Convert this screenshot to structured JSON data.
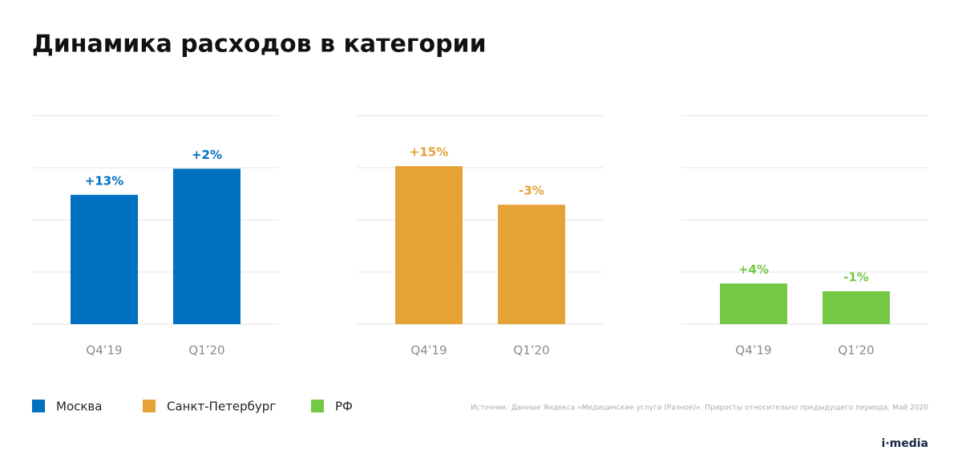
{
  "title": "Динамика расходов в категории",
  "source": "Источник: Данные Яндекса «Медицинские услуги (Разное)». Приросты относительно предыдущего периода. Май 2020",
  "logo": "i·media",
  "chart_data": [
    {
      "type": "bar",
      "series": [
        {
          "name": "Москва",
          "color": "#0070c0",
          "values": [
            2.48,
            2.98
          ]
        }
      ],
      "categories": [
        "Q4’19",
        "Q1’20"
      ],
      "growth_labels": [
        "+13%",
        "+2%"
      ],
      "ylim": [
        0,
        4
      ],
      "yticks": [
        0,
        1,
        2,
        3,
        4
      ],
      "grid": true
    },
    {
      "type": "bar",
      "series": [
        {
          "name": "Санкт-Петербург",
          "color": "#e5a236",
          "values": [
            3.03,
            2.29
          ]
        }
      ],
      "categories": [
        "Q4’19",
        "Q1’20"
      ],
      "growth_labels": [
        "+15%",
        "-3%"
      ],
      "ylim": [
        0,
        4
      ],
      "yticks": [
        0,
        1,
        2,
        3,
        4
      ],
      "grid": true
    },
    {
      "type": "bar",
      "series": [
        {
          "name": "РФ",
          "color": "#74c843",
          "values": [
            0.78,
            0.63
          ]
        }
      ],
      "categories": [
        "Q4’19",
        "Q1’20"
      ],
      "growth_labels": [
        "+4%",
        "-1%"
      ],
      "ylim": [
        0,
        4
      ],
      "yticks": [
        0,
        1,
        2,
        3,
        4
      ],
      "grid": true
    }
  ]
}
